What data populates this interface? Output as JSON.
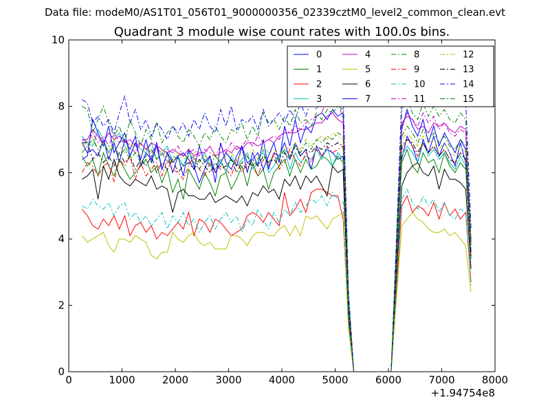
{
  "suptitle": "Data file: modeM0/AS1T01_056T01_9000000356_02339cztM0_level2_common_clean.evt",
  "chart_data": {
    "type": "line",
    "title": "Quadrant 3 module wise count rates with 100.0s bins.",
    "xlabel": "",
    "ylabel": "",
    "x_offset_label": "+1.94754e8",
    "xlim": [
      0,
      8000
    ],
    "ylim": [
      0,
      10
    ],
    "xticks": [
      0,
      1000,
      2000,
      3000,
      4000,
      5000,
      6000,
      7000,
      8000
    ],
    "yticks": [
      0,
      2,
      4,
      6,
      8,
      10
    ],
    "legend_position": "top-right",
    "x": [
      250,
      350,
      450,
      550,
      650,
      750,
      850,
      950,
      1050,
      1150,
      1250,
      1350,
      1450,
      1550,
      1650,
      1750,
      1850,
      1950,
      2050,
      2150,
      2250,
      2350,
      2450,
      2550,
      2650,
      2750,
      2850,
      2950,
      3050,
      3150,
      3250,
      3350,
      3450,
      3550,
      3650,
      3750,
      3850,
      3950,
      4050,
      4150,
      4250,
      4350,
      4450,
      4550,
      4650,
      4750,
      4850,
      4950,
      5050,
      5150,
      5250,
      5350,
      6050,
      6150,
      6250,
      6350,
      6450,
      6550,
      6650,
      6750,
      6850,
      6950,
      7050,
      7150,
      7250,
      7350,
      7450,
      7550
    ],
    "series": [
      {
        "name": "0",
        "color": "#0000ff",
        "dash": "solid",
        "values": [
          6.9,
          6.6,
          6.7,
          6.5,
          7.0,
          6.4,
          6.9,
          6.3,
          7.0,
          6.7,
          7.1,
          6.2,
          6.6,
          6.4,
          6.9,
          6.1,
          6.6,
          6.0,
          6.5,
          5.9,
          6.7,
          6.2,
          5.7,
          6.1,
          6.5,
          5.7,
          6.9,
          6.3,
          6.1,
          6.5,
          6.8,
          6.0,
          6.6,
          6.2,
          7.0,
          6.1,
          6.6,
          6.5,
          6.9,
          6.4,
          6.9,
          6.5,
          6.7,
          6.1,
          6.8,
          6.5,
          6.7,
          6.6,
          6.4,
          6.5,
          1.9,
          0.0,
          0.0,
          3.3,
          6.4,
          7.1,
          6.8,
          6.3,
          7.0,
          6.6,
          7.1,
          6.5,
          6.9,
          6.6,
          6.2,
          6.9,
          6.3,
          3.6
        ]
      },
      {
        "name": "1",
        "color": "#008000",
        "dash": "solid",
        "values": [
          6.5,
          6.2,
          6.4,
          5.9,
          6.6,
          6.2,
          5.9,
          6.4,
          6.1,
          5.8,
          6.0,
          6.2,
          6.4,
          6.0,
          6.2,
          5.7,
          6.1,
          5.4,
          5.8,
          5.2,
          6.1,
          5.8,
          5.5,
          6.0,
          5.7,
          5.3,
          5.9,
          6.0,
          5.5,
          5.8,
          6.2,
          5.6,
          6.3,
          5.9,
          6.1,
          5.5,
          6.0,
          6.2,
          6.4,
          5.9,
          6.4,
          6.0,
          6.4,
          6.1,
          6.2,
          6.5,
          6.4,
          6.2,
          6.5,
          6.3,
          1.8,
          0.0,
          0.0,
          3.1,
          6.3,
          6.7,
          6.2,
          6.0,
          6.6,
          6.3,
          6.4,
          6.0,
          6.6,
          6.2,
          6.0,
          6.3,
          6.1,
          3.4
        ]
      },
      {
        "name": "2",
        "color": "#ff0000",
        "dash": "solid",
        "values": [
          4.9,
          4.7,
          4.4,
          4.3,
          4.6,
          4.4,
          4.7,
          4.3,
          4.7,
          4.1,
          4.4,
          4.5,
          4.2,
          4.4,
          4.0,
          4.2,
          4.1,
          4.3,
          4.5,
          4.3,
          4.8,
          4.1,
          4.6,
          4.5,
          4.2,
          4.6,
          4.5,
          4.3,
          4.1,
          4.2,
          4.3,
          4.7,
          4.8,
          4.7,
          4.5,
          4.8,
          4.6,
          4.4,
          5.4,
          4.7,
          4.9,
          5.2,
          4.8,
          5.4,
          5.5,
          5.5,
          5.4,
          5.3,
          5.3,
          4.6,
          1.4,
          0.0,
          0.0,
          2.4,
          5.0,
          5.3,
          4.8,
          5.0,
          4.9,
          4.7,
          5.1,
          4.6,
          5.1,
          4.7,
          4.9,
          4.6,
          4.8,
          2.7
        ]
      },
      {
        "name": "3",
        "color": "#00bfbf",
        "dash": "solid",
        "values": [
          7.1,
          6.9,
          6.8,
          7.3,
          7.0,
          6.6,
          7.0,
          7.2,
          6.8,
          6.5,
          6.9,
          6.7,
          6.6,
          6.9,
          6.4,
          6.6,
          6.8,
          6.3,
          6.5,
          6.2,
          6.6,
          6.4,
          6.3,
          6.6,
          6.2,
          6.1,
          6.4,
          6.0,
          6.5,
          6.2,
          6.4,
          6.6,
          6.1,
          6.3,
          6.7,
          6.0,
          6.2,
          6.5,
          6.7,
          6.1,
          6.6,
          6.3,
          6.5,
          6.4,
          6.7,
          6.4,
          6.8,
          6.2,
          6.6,
          6.4,
          1.8,
          0.0,
          0.0,
          3.1,
          6.5,
          6.8,
          6.6,
          6.3,
          6.9,
          6.5,
          6.7,
          6.4,
          6.6,
          6.3,
          6.1,
          6.5,
          6.2,
          3.4
        ]
      },
      {
        "name": "4",
        "color": "#bf00bf",
        "dash": "solid",
        "values": [
          7.0,
          7.0,
          7.3,
          7.1,
          6.9,
          7.2,
          7.0,
          7.1,
          6.9,
          7.0,
          6.8,
          6.9,
          6.7,
          6.9,
          6.8,
          6.7,
          6.6,
          6.7,
          6.6,
          6.5,
          6.7,
          6.5,
          6.6,
          6.6,
          6.8,
          6.5,
          6.6,
          6.7,
          6.6,
          6.8,
          6.7,
          6.9,
          6.9,
          6.8,
          6.9,
          7.0,
          6.9,
          7.1,
          7.2,
          7.2,
          7.2,
          7.3,
          7.3,
          7.4,
          7.5,
          7.5,
          7.7,
          7.8,
          7.6,
          7.5,
          2.1,
          0.0,
          0.0,
          3.6,
          7.5,
          7.7,
          7.6,
          7.3,
          7.4,
          7.2,
          7.5,
          7.4,
          7.5,
          7.3,
          7.2,
          7.4,
          7.3,
          3.9
        ]
      },
      {
        "name": "5",
        "color": "#bfbf00",
        "dash": "solid",
        "values": [
          4.1,
          3.9,
          4.0,
          4.1,
          4.2,
          3.8,
          3.6,
          4.0,
          4.0,
          3.9,
          4.1,
          4.0,
          3.9,
          3.5,
          3.4,
          3.6,
          3.6,
          4.2,
          4.0,
          3.9,
          4.1,
          4.2,
          3.9,
          3.8,
          3.9,
          3.7,
          3.7,
          3.7,
          4.1,
          4.1,
          4.0,
          3.8,
          4.1,
          4.2,
          4.2,
          4.1,
          4.1,
          4.3,
          4.4,
          4.1,
          4.4,
          4.1,
          4.7,
          4.6,
          4.7,
          4.5,
          4.3,
          4.6,
          4.7,
          4.8,
          1.3,
          0.0,
          0.0,
          2.2,
          4.4,
          4.6,
          4.8,
          4.6,
          4.5,
          4.3,
          4.2,
          4.2,
          4.3,
          4.1,
          4.2,
          4.0,
          3.8,
          2.4
        ]
      },
      {
        "name": "6",
        "color": "#000000",
        "dash": "solid",
        "values": [
          5.8,
          5.9,
          6.1,
          5.2,
          6.2,
          5.8,
          6.4,
          5.9,
          5.7,
          5.6,
          5.8,
          5.7,
          5.6,
          5.9,
          5.5,
          5.6,
          5.5,
          4.8,
          5.4,
          5.5,
          5.3,
          5.3,
          5.2,
          5.2,
          5.4,
          5.1,
          5.2,
          5.3,
          5.2,
          5.1,
          5.3,
          5.0,
          5.4,
          5.3,
          5.6,
          5.4,
          5.5,
          5.2,
          5.8,
          5.6,
          5.9,
          5.5,
          5.9,
          5.7,
          5.9,
          5.6,
          5.3,
          6.2,
          6.0,
          6.1,
          1.7,
          0.0,
          0.0,
          2.9,
          5.6,
          6.0,
          6.2,
          6.3,
          6.0,
          5.9,
          6.2,
          5.5,
          6.1,
          5.8,
          5.8,
          5.7,
          5.5,
          3.1
        ]
      },
      {
        "name": "7",
        "color": "#0000ff",
        "dash": "solid",
        "values": [
          6.4,
          6.5,
          7.6,
          7.2,
          6.8,
          7.4,
          6.6,
          6.9,
          7.2,
          6.5,
          6.9,
          6.4,
          7.0,
          6.3,
          6.8,
          6.1,
          6.6,
          6.3,
          6.5,
          6.6,
          6.4,
          6.1,
          6.8,
          6.3,
          6.5,
          6.0,
          6.3,
          6.6,
          6.4,
          6.2,
          6.8,
          6.3,
          6.4,
          6.6,
          6.1,
          6.5,
          6.9,
          6.3,
          7.4,
          6.8,
          7.6,
          6.9,
          7.4,
          7.2,
          7.7,
          7.8,
          7.6,
          7.9,
          7.7,
          7.8,
          2.2,
          0.0,
          0.0,
          3.7,
          7.3,
          7.9,
          7.4,
          7.1,
          7.6,
          6.9,
          7.4,
          6.8,
          7.2,
          6.9,
          6.6,
          7.0,
          6.7,
          3.5
        ]
      },
      {
        "name": "8",
        "color": "#008000",
        "dash": "dashdot",
        "values": [
          8.0,
          7.9,
          7.2,
          7.6,
          8.0,
          7.5,
          7.1,
          7.4,
          6.9,
          7.6,
          7.2,
          6.8,
          7.3,
          7.0,
          7.5,
          6.9,
          7.2,
          7.4,
          7.1,
          6.9,
          7.3,
          7.1,
          6.8,
          7.2,
          7.0,
          7.4,
          7.1,
          6.9,
          7.3,
          7.2,
          7.5,
          7.0,
          7.4,
          7.1,
          7.8,
          7.5,
          7.6,
          7.3,
          7.7,
          7.4,
          7.9,
          7.5,
          7.6,
          7.4,
          7.8,
          7.6,
          7.9,
          7.8,
          8.0,
          7.9,
          2.3,
          0.0,
          0.0,
          3.9,
          7.9,
          8.2,
          7.8,
          7.6,
          8.1,
          7.7,
          8.0,
          7.7,
          7.9,
          7.6,
          7.5,
          7.8,
          7.6,
          4.0
        ]
      },
      {
        "name": "9",
        "color": "#ff0000",
        "dash": "dashdot",
        "values": [
          6.0,
          6.3,
          6.2,
          5.9,
          6.2,
          6.3,
          5.7,
          6.4,
          6.2,
          6.5,
          5.8,
          6.3,
          5.9,
          6.1,
          6.3,
          5.9,
          6.4,
          6.1,
          6.0,
          5.8,
          6.2,
          6.5,
          6.1,
          5.9,
          6.3,
          6.0,
          6.2,
          6.1,
          5.9,
          6.4,
          6.0,
          6.3,
          6.2,
          5.9,
          6.4,
          6.2,
          6.6,
          6.1,
          6.3,
          6.7,
          6.4,
          6.2,
          6.6,
          6.3,
          6.7,
          6.5,
          6.8,
          6.6,
          6.7,
          6.8,
          1.9,
          0.0,
          0.0,
          3.3,
          6.7,
          7.0,
          6.8,
          6.5,
          6.9,
          6.6,
          6.8,
          6.5,
          6.7,
          6.4,
          6.3,
          6.6,
          6.4,
          3.5
        ]
      },
      {
        "name": "10",
        "color": "#00bfbf",
        "dash": "dashdot",
        "values": [
          5.0,
          4.9,
          5.2,
          5.0,
          4.9,
          5.1,
          4.7,
          5.0,
          5.1,
          4.6,
          4.8,
          4.5,
          4.7,
          4.4,
          4.6,
          4.8,
          4.3,
          4.7,
          4.5,
          4.8,
          4.4,
          4.6,
          4.2,
          4.5,
          4.7,
          4.3,
          4.6,
          4.8,
          4.5,
          4.7,
          4.2,
          4.6,
          4.4,
          4.9,
          4.6,
          4.3,
          4.8,
          4.5,
          4.9,
          4.7,
          5.1,
          4.8,
          5.0,
          5.2,
          5.1,
          5.3,
          5.0,
          5.4,
          5.2,
          5.1,
          1.5,
          0.0,
          0.0,
          2.6,
          5.2,
          5.5,
          5.1,
          4.9,
          5.3,
          5.0,
          5.2,
          4.8,
          5.1,
          4.7,
          4.6,
          4.9,
          4.8,
          2.6
        ]
      },
      {
        "name": "11",
        "color": "#bf00bf",
        "dash": "dashdot",
        "values": [
          7.0,
          6.9,
          7.2,
          6.9,
          7.1,
          6.8,
          7.2,
          6.9,
          7.0,
          6.8,
          6.6,
          6.9,
          6.7,
          6.6,
          6.8,
          6.5,
          6.7,
          6.6,
          6.8,
          6.5,
          6.6,
          6.7,
          6.5,
          6.7,
          6.6,
          6.5,
          6.8,
          6.6,
          6.9,
          6.7,
          6.8,
          7.0,
          6.8,
          7.1,
          6.9,
          7.0,
          7.1,
          7.0,
          7.3,
          7.2,
          7.4,
          7.3,
          7.5,
          7.6,
          7.7,
          7.8,
          8.3,
          8.4,
          8.2,
          7.6,
          2.0,
          0.0,
          0.0,
          3.5,
          7.4,
          7.8,
          7.6,
          7.4,
          7.8,
          7.5,
          7.7,
          7.3,
          7.5,
          7.2,
          7.1,
          7.3,
          7.2,
          3.8
        ]
      },
      {
        "name": "12",
        "color": "#bfbf00",
        "dash": "dashdot",
        "values": [
          6.8,
          6.9,
          7.1,
          6.7,
          6.9,
          6.6,
          7.0,
          6.8,
          6.6,
          6.9,
          6.7,
          6.5,
          6.8,
          6.6,
          6.4,
          6.7,
          6.5,
          6.3,
          6.6,
          6.4,
          6.5,
          6.6,
          6.3,
          6.5,
          6.4,
          6.6,
          6.3,
          6.5,
          6.6,
          6.4,
          6.6,
          6.5,
          6.7,
          6.4,
          6.8,
          6.6,
          6.7,
          6.5,
          6.8,
          6.7,
          6.9,
          6.7,
          7.0,
          6.8,
          7.0,
          7.1,
          7.0,
          7.2,
          7.1,
          7.0,
          2.0,
          0.0,
          0.0,
          3.4,
          7.0,
          7.2,
          7.0,
          6.8,
          7.1,
          6.9,
          7.0,
          6.7,
          6.9,
          6.6,
          6.5,
          6.8,
          6.6,
          3.5
        ]
      },
      {
        "name": "13",
        "color": "#000000",
        "dash": "dashdot",
        "values": [
          6.9,
          6.9,
          6.4,
          6.6,
          6.3,
          6.5,
          6.2,
          6.6,
          6.3,
          6.5,
          6.1,
          6.4,
          6.2,
          6.5,
          6.0,
          6.3,
          6.1,
          6.4,
          6.0,
          6.2,
          6.3,
          6.1,
          6.4,
          6.2,
          6.0,
          6.3,
          6.1,
          6.2,
          6.4,
          6.0,
          6.3,
          6.1,
          6.4,
          6.2,
          6.5,
          6.3,
          6.4,
          6.2,
          6.6,
          6.4,
          6.8,
          6.5,
          6.7,
          6.6,
          6.8,
          6.7,
          6.9,
          6.8,
          6.9,
          6.8,
          1.9,
          0.0,
          0.0,
          3.3,
          6.8,
          7.0,
          6.9,
          6.6,
          6.9,
          6.6,
          6.8,
          6.5,
          6.7,
          6.4,
          6.3,
          6.6,
          6.4,
          3.5
        ]
      },
      {
        "name": "14",
        "color": "#0000ff",
        "dash": "dashdot",
        "values": [
          8.2,
          8.1,
          7.5,
          7.7,
          7.4,
          7.6,
          7.2,
          7.8,
          8.3,
          7.5,
          7.9,
          7.3,
          7.6,
          7.1,
          7.5,
          7.3,
          7.0,
          7.4,
          7.2,
          7.5,
          7.1,
          7.6,
          7.3,
          7.8,
          7.4,
          7.2,
          7.9,
          7.4,
          8.0,
          7.3,
          7.6,
          7.5,
          7.7,
          7.3,
          7.9,
          7.4,
          7.6,
          7.8,
          7.5,
          7.9,
          7.6,
          8.1,
          7.7,
          8.2,
          7.9,
          8.3,
          8.5,
          9.0,
          8.6,
          8.4,
          2.4,
          0.0,
          0.0,
          4.0,
          8.3,
          8.7,
          8.4,
          8.1,
          8.6,
          8.3,
          8.9,
          8.5,
          8.6,
          8.3,
          8.4,
          8.5,
          8.2,
          4.3
        ]
      },
      {
        "name": "15",
        "color": "#008000",
        "dash": "dashdot",
        "values": [
          6.6,
          6.8,
          7.0,
          6.7,
          6.9,
          6.6,
          6.8,
          6.5,
          6.7,
          6.4,
          6.6,
          6.3,
          6.5,
          6.7,
          6.4,
          6.6,
          6.3,
          6.5,
          6.4,
          6.2,
          6.5,
          6.3,
          6.1,
          6.4,
          6.2,
          6.5,
          6.3,
          6.1,
          6.4,
          6.2,
          6.3,
          6.5,
          6.2,
          6.4,
          6.6,
          6.3,
          6.5,
          6.4,
          6.7,
          6.5,
          6.8,
          6.6,
          6.9,
          6.7,
          7.0,
          6.9,
          7.1,
          7.0,
          7.2,
          7.1,
          2.0,
          0.0,
          0.0,
          3.4,
          7.1,
          7.4,
          7.2,
          6.9,
          7.3,
          7.0,
          7.2,
          6.9,
          7.1,
          6.8,
          6.7,
          7.0,
          6.8,
          3.7
        ]
      }
    ]
  }
}
